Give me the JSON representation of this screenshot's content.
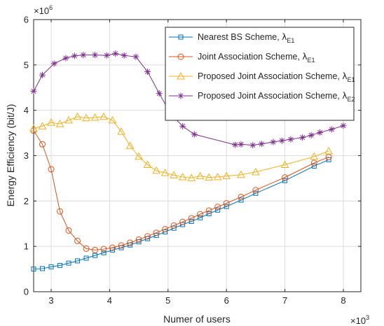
{
  "chart_data": {
    "type": "line",
    "title": "",
    "xlabel": "Numer of users",
    "ylabel": "Energy Efficiency (bit/J)",
    "x_multiplier": "×10",
    "x_multiplier_exp": "3",
    "y_multiplier": "×10",
    "y_multiplier_exp": "6",
    "xlim": [
      2.7,
      8.3
    ],
    "ylim": [
      0,
      6
    ],
    "xticks": [
      3,
      4,
      5,
      6,
      7,
      8
    ],
    "yticks": [
      0,
      1,
      2,
      3,
      4,
      5,
      6
    ],
    "grid": true,
    "legend_position": "top-right",
    "series": [
      {
        "name": "Nearest BS Scheme, ",
        "sym_sub": "E1",
        "color": "#0072BD",
        "marker": "square",
        "x": [
          2.7,
          2.85,
          3.0,
          3.15,
          3.3,
          3.45,
          3.6,
          3.75,
          3.9,
          4.05,
          4.2,
          4.35,
          4.5,
          4.65,
          4.8,
          4.95,
          5.1,
          5.25,
          5.4,
          5.55,
          5.7,
          5.85,
          6.0,
          6.25,
          6.5,
          7.0,
          7.5,
          7.75
        ],
        "y": [
          0.5,
          0.51,
          0.55,
          0.58,
          0.63,
          0.68,
          0.74,
          0.8,
          0.86,
          0.92,
          0.97,
          1.03,
          1.1,
          1.17,
          1.24,
          1.32,
          1.4,
          1.48,
          1.55,
          1.63,
          1.72,
          1.8,
          1.88,
          2.02,
          2.17,
          2.45,
          2.77,
          2.91
        ]
      },
      {
        "name": " Joint Association Scheme, ",
        "sym_sub": "E1",
        "color": "#D95319",
        "marker": "circle",
        "x": [
          2.7,
          2.85,
          3.0,
          3.15,
          3.3,
          3.45,
          3.6,
          3.75,
          3.9,
          4.05,
          4.2,
          4.35,
          4.5,
          4.65,
          4.8,
          4.95,
          5.1,
          5.25,
          5.4,
          5.55,
          5.7,
          5.85,
          6.0,
          6.25,
          6.5,
          7.0,
          7.5,
          7.75
        ],
        "y": [
          3.55,
          3.25,
          2.7,
          1.77,
          1.35,
          1.12,
          0.95,
          0.92,
          0.94,
          0.97,
          1.02,
          1.08,
          1.15,
          1.22,
          1.3,
          1.38,
          1.46,
          1.54,
          1.62,
          1.71,
          1.79,
          1.87,
          1.95,
          2.09,
          2.24,
          2.52,
          2.84,
          2.97
        ]
      },
      {
        "name": "Proposed Joint Association Scheme, ",
        "sym_sub": "E1",
        "color": "#EDB120",
        "marker": "triangle",
        "x": [
          2.7,
          2.85,
          3.0,
          3.15,
          3.3,
          3.45,
          3.6,
          3.75,
          3.9,
          4.05,
          4.2,
          4.35,
          4.5,
          4.65,
          4.8,
          4.95,
          5.1,
          5.25,
          5.4,
          5.55,
          5.7,
          5.85,
          6.0,
          6.25,
          6.5,
          7.0,
          7.5,
          7.75
        ],
        "y": [
          3.6,
          3.65,
          3.73,
          3.7,
          3.78,
          3.86,
          3.83,
          3.84,
          3.86,
          3.78,
          3.53,
          3.22,
          2.98,
          2.8,
          2.67,
          2.62,
          2.57,
          2.53,
          2.51,
          2.55,
          2.52,
          2.53,
          2.55,
          2.58,
          2.64,
          2.8,
          2.98,
          3.1
        ]
      },
      {
        "name": "Proposed Joint Association Scheme, ",
        "sym_sub": "E2",
        "color": "#7E2F8E",
        "marker": "star",
        "x": [
          2.7,
          2.85,
          3.05,
          3.25,
          3.4,
          3.55,
          3.75,
          3.95,
          4.1,
          4.25,
          4.45,
          4.65,
          4.85,
          5.05,
          5.25,
          5.45,
          6.15,
          6.25,
          6.45,
          6.6,
          6.8,
          6.95,
          7.1,
          7.3,
          7.45,
          7.6,
          7.8,
          8.0
        ],
        "y": [
          4.42,
          4.78,
          5.03,
          5.15,
          5.2,
          5.22,
          5.22,
          5.21,
          5.25,
          5.21,
          5.18,
          4.85,
          4.37,
          3.91,
          3.65,
          3.47,
          3.24,
          3.25,
          3.23,
          3.26,
          3.3,
          3.33,
          3.36,
          3.4,
          3.45,
          3.51,
          3.58,
          3.66
        ]
      }
    ]
  }
}
